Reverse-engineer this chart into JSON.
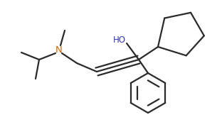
{
  "background_color": "#ffffff",
  "line_color": "#2a2a2a",
  "text_color_ho": "#3333bb",
  "text_color_n": "#cc6600",
  "line_width": 1.6,
  "figsize": [
    3.12,
    1.79
  ],
  "dpi": 100,
  "triple_sep": 0.018
}
